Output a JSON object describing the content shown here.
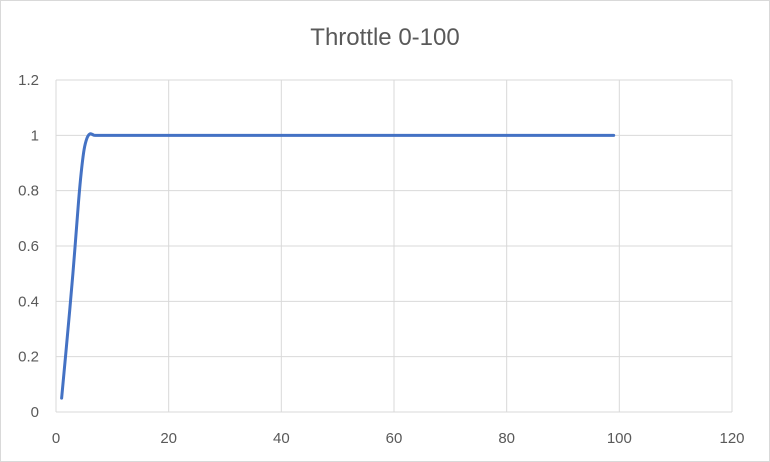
{
  "chart_data": {
    "type": "line",
    "title": "Throttle 0-100",
    "xlabel": "",
    "ylabel": "",
    "xlim": [
      0,
      120
    ],
    "ylim": [
      0,
      1.2
    ],
    "x_ticks": [
      0,
      20,
      40,
      60,
      80,
      100,
      120
    ],
    "y_ticks": [
      0,
      0.2,
      0.4,
      0.6,
      0.8,
      1,
      1.2
    ],
    "x_tick_labels": [
      "0",
      "20",
      "40",
      "60",
      "80",
      "100",
      "120"
    ],
    "y_tick_labels": [
      "0",
      "0.2",
      "0.4",
      "0.6",
      "0.8",
      "1",
      "1.2"
    ],
    "grid": true,
    "legend": "none",
    "series": [
      {
        "color": "#4472c4",
        "x": [
          1,
          2,
          3,
          4,
          4.5,
          5,
          5.5,
          6,
          6.5,
          7,
          10,
          20,
          30,
          40,
          50,
          60,
          70,
          80,
          90,
          99
        ],
        "y": [
          0.05,
          0.27,
          0.5,
          0.76,
          0.87,
          0.95,
          0.99,
          1.005,
          1.003,
          1.0,
          1.0,
          1.0,
          1.0,
          1.0,
          1.0,
          1.0,
          1.0,
          1.0,
          1.0,
          1.0
        ]
      }
    ]
  }
}
